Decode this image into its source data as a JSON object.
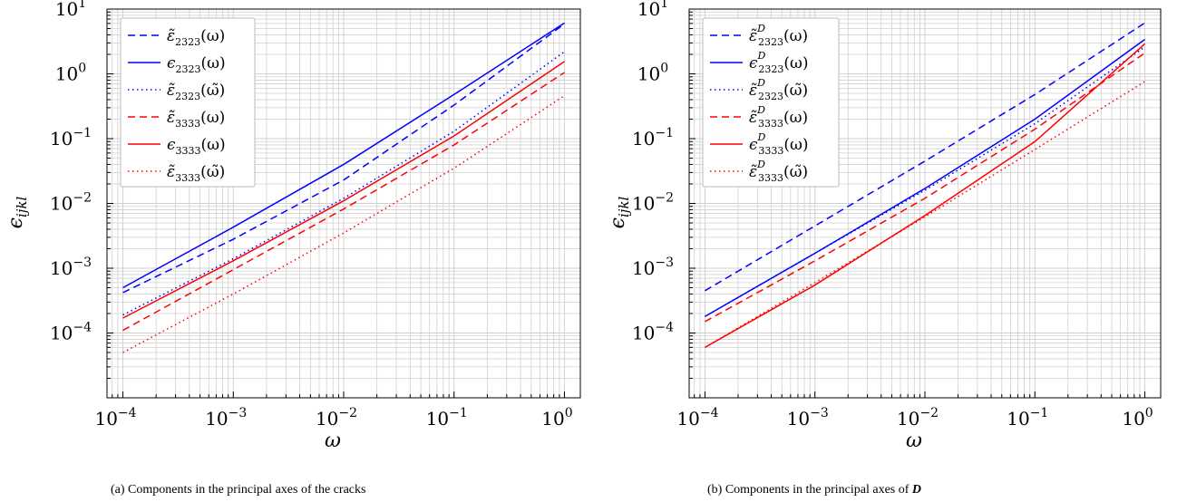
{
  "colors": {
    "blue": "#0000ff",
    "red": "#ff0000",
    "grid": "#d0d0d0",
    "axis": "#000000"
  },
  "chart_data": [
    {
      "type": "line",
      "panel": "a",
      "caption": "(a) Components in the principal axes of the cracks",
      "xlabel": "ω",
      "ylabel": "ϵijkl",
      "xscale": "log",
      "yscale": "log",
      "xlim": [
        0.0001,
        1
      ],
      "ylim": [
        1e-05,
        10
      ],
      "grid": true,
      "legend_position": "top-left",
      "xticks": [
        {
          "base": "10",
          "exp": "−4"
        },
        {
          "base": "10",
          "exp": "−3"
        },
        {
          "base": "10",
          "exp": "−2"
        },
        {
          "base": "10",
          "exp": "−1"
        },
        {
          "base": "10",
          "exp": "0"
        }
      ],
      "yticks": [
        {
          "base": "10",
          "exp": "−4"
        },
        {
          "base": "10",
          "exp": "−3"
        },
        {
          "base": "10",
          "exp": "−2"
        },
        {
          "base": "10",
          "exp": "−1"
        },
        {
          "base": "10",
          "exp": "0"
        },
        {
          "base": "10",
          "exp": "1"
        }
      ],
      "series": [
        {
          "sym": "ε̃",
          "sub": "2323",
          "sup": "",
          "arg": "(ω)",
          "color": "blue",
          "style": "dashed",
          "x": [
            0.0001,
            0.001,
            0.01,
            0.1,
            1
          ],
          "y": [
            0.00042,
            0.0028,
            0.023,
            0.33,
            5.9
          ]
        },
        {
          "sym": "ϵ",
          "sub": "2323",
          "sup": "",
          "arg": "(ω)",
          "color": "blue",
          "style": "solid",
          "x": [
            0.0001,
            0.001,
            0.01,
            0.1,
            1
          ],
          "y": [
            0.0005,
            0.0043,
            0.04,
            0.48,
            6.1
          ]
        },
        {
          "sym": "ε̃",
          "sub": "2323",
          "sup": "",
          "arg": "(ω̃)",
          "color": "blue",
          "style": "dotted",
          "x": [
            0.0001,
            0.001,
            0.01,
            0.1,
            1
          ],
          "y": [
            0.00019,
            0.0014,
            0.012,
            0.13,
            2.2
          ]
        },
        {
          "sym": "ε̃",
          "sub": "3333",
          "sup": "",
          "arg": "(ω)",
          "color": "red",
          "style": "dashed",
          "x": [
            0.0001,
            0.001,
            0.01,
            0.1,
            1
          ],
          "y": [
            0.00011,
            0.00095,
            0.0082,
            0.08,
            1.05
          ]
        },
        {
          "sym": "ϵ",
          "sub": "3333",
          "sup": "",
          "arg": "(ω)",
          "color": "red",
          "style": "solid",
          "x": [
            0.0001,
            0.001,
            0.01,
            0.1,
            1
          ],
          "y": [
            0.00017,
            0.0013,
            0.011,
            0.11,
            1.55
          ]
        },
        {
          "sym": "ε̃",
          "sub": "3333",
          "sup": "",
          "arg": "(ω̃)",
          "color": "red",
          "style": "dotted",
          "x": [
            0.0001,
            0.001,
            0.01,
            0.1,
            1
          ],
          "y": [
            5e-05,
            0.0004,
            0.0035,
            0.035,
            0.46
          ]
        }
      ]
    },
    {
      "type": "line",
      "panel": "b",
      "caption": "(b) Components in the principal axes of ",
      "caption_var": "D",
      "xlabel": "ω",
      "ylabel": "ϵijkl",
      "xscale": "log",
      "yscale": "log",
      "xlim": [
        0.0001,
        1
      ],
      "ylim": [
        1e-05,
        10
      ],
      "grid": true,
      "legend_position": "top-left",
      "xticks": [
        {
          "base": "10",
          "exp": "−4"
        },
        {
          "base": "10",
          "exp": "−3"
        },
        {
          "base": "10",
          "exp": "−2"
        },
        {
          "base": "10",
          "exp": "−1"
        },
        {
          "base": "10",
          "exp": "0"
        }
      ],
      "yticks": [
        {
          "base": "10",
          "exp": "−4"
        },
        {
          "base": "10",
          "exp": "−3"
        },
        {
          "base": "10",
          "exp": "−2"
        },
        {
          "base": "10",
          "exp": "−1"
        },
        {
          "base": "10",
          "exp": "0"
        },
        {
          "base": "10",
          "exp": "1"
        }
      ],
      "series": [
        {
          "sym": "ε̃",
          "sub": "2323",
          "sup": "D",
          "arg": "(ω)",
          "color": "blue",
          "style": "dashed",
          "x": [
            0.0001,
            0.001,
            0.01,
            0.1,
            1
          ],
          "y": [
            0.00045,
            0.0045,
            0.045,
            0.48,
            6.1
          ]
        },
        {
          "sym": "ϵ",
          "sub": "2323",
          "sup": "D",
          "arg": "(ω)",
          "color": "blue",
          "style": "solid",
          "x": [
            0.0001,
            0.001,
            0.01,
            0.1,
            1
          ],
          "y": [
            0.00018,
            0.0017,
            0.017,
            0.2,
            3.4
          ]
        },
        {
          "sym": "ε̃",
          "sub": "2323",
          "sup": "D",
          "arg": "(ω̃)",
          "color": "blue",
          "style": "dotted",
          "x": [
            0.0001,
            0.001,
            0.01,
            0.1,
            1
          ],
          "y": [
            0.00018,
            0.0017,
            0.016,
            0.17,
            2.6
          ]
        },
        {
          "sym": "ε̃",
          "sub": "3333",
          "sup": "D",
          "arg": "(ω)",
          "color": "red",
          "style": "dashed",
          "x": [
            0.0001,
            0.001,
            0.01,
            0.1,
            1
          ],
          "y": [
            0.00015,
            0.0013,
            0.012,
            0.14,
            2.1
          ]
        },
        {
          "sym": "ϵ",
          "sub": "3333",
          "sup": "D",
          "arg": "(ω)",
          "color": "red",
          "style": "solid",
          "x": [
            0.0001,
            0.001,
            0.01,
            0.1,
            1
          ],
          "y": [
            6e-05,
            0.00055,
            0.0065,
            0.09,
            2.9
          ]
        },
        {
          "sym": "ε̃",
          "sub": "3333",
          "sup": "D",
          "arg": "(ω̃)",
          "color": "red",
          "style": "dotted",
          "x": [
            0.0001,
            0.001,
            0.01,
            0.1,
            1
          ],
          "y": [
            6e-05,
            0.0006,
            0.0062,
            0.068,
            0.76
          ]
        }
      ]
    }
  ]
}
